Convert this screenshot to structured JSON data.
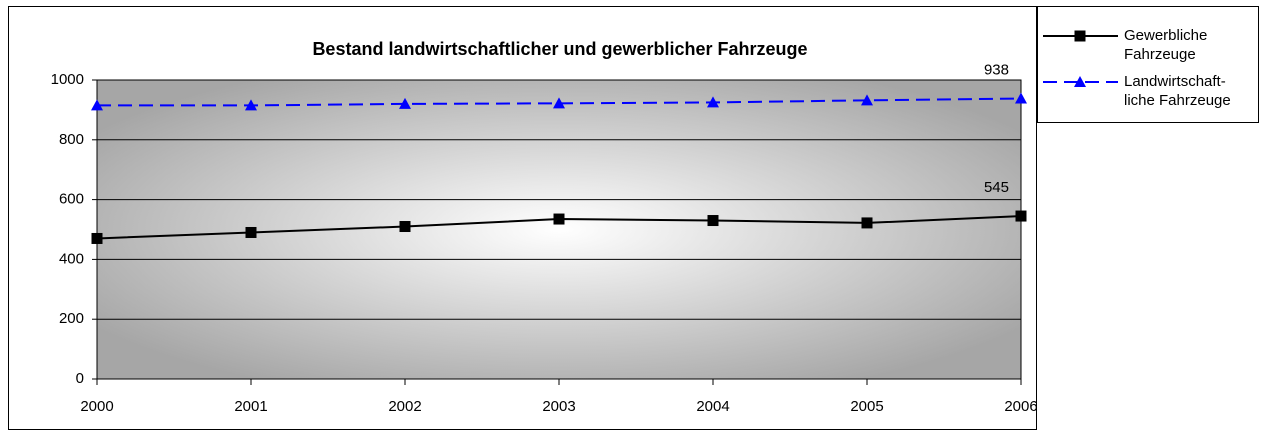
{
  "chart_data": {
    "type": "line",
    "title": "Bestand landwirtschaftlicher und gewerblicher Fahrzeuge",
    "categories": [
      "2000",
      "2001",
      "2002",
      "2003",
      "2004",
      "2005",
      "2006"
    ],
    "series": [
      {
        "name": [
          "Gewerbliche",
          "Fahrzeuge"
        ],
        "color": "#000000",
        "marker": "square",
        "dash": false,
        "values": [
          470,
          490,
          510,
          535,
          530,
          522,
          545
        ],
        "value_labels": [
          null,
          null,
          null,
          null,
          null,
          null,
          "545"
        ]
      },
      {
        "name": [
          "Landwirtschaft-",
          "liche Fahrzeuge"
        ],
        "color": "#0000ff",
        "marker": "triangle",
        "dash": true,
        "values": [
          915,
          915,
          920,
          922,
          925,
          932,
          938
        ],
        "value_labels": [
          null,
          null,
          null,
          null,
          null,
          null,
          "938"
        ]
      }
    ],
    "ylim": [
      0,
      1000
    ],
    "yticks": [
      0,
      200,
      400,
      600,
      800,
      1000
    ],
    "grid": true,
    "legend": "right"
  }
}
